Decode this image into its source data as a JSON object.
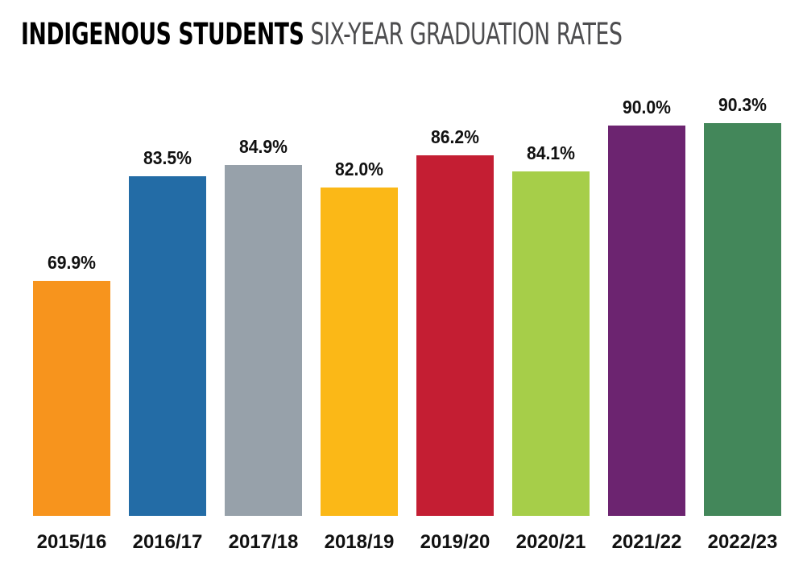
{
  "title": {
    "bold": "INDIGENOUS STUDENTS",
    "light": "SIX-YEAR GRADUATION RATES"
  },
  "chart_data": {
    "type": "bar",
    "title": "INDIGENOUS STUDENTS SIX-YEAR GRADUATION RATES",
    "categories": [
      "2015/16",
      "2016/17",
      "2017/18",
      "2018/19",
      "2019/20",
      "2020/21",
      "2021/22",
      "2022/23"
    ],
    "values": [
      69.9,
      83.5,
      84.9,
      82.0,
      86.2,
      84.1,
      90.0,
      90.3
    ],
    "labels": [
      "69.9%",
      "83.5%",
      "84.9%",
      "82.0%",
      "86.2%",
      "84.1%",
      "90.0%",
      "90.3%"
    ],
    "colors": [
      "#f7941d",
      "#236ca6",
      "#97a1aa",
      "#fbb817",
      "#c41e33",
      "#a6ce49",
      "#6c2470",
      "#43875a"
    ],
    "xlabel": "",
    "ylabel": "",
    "grid": false,
    "legend": "none"
  }
}
